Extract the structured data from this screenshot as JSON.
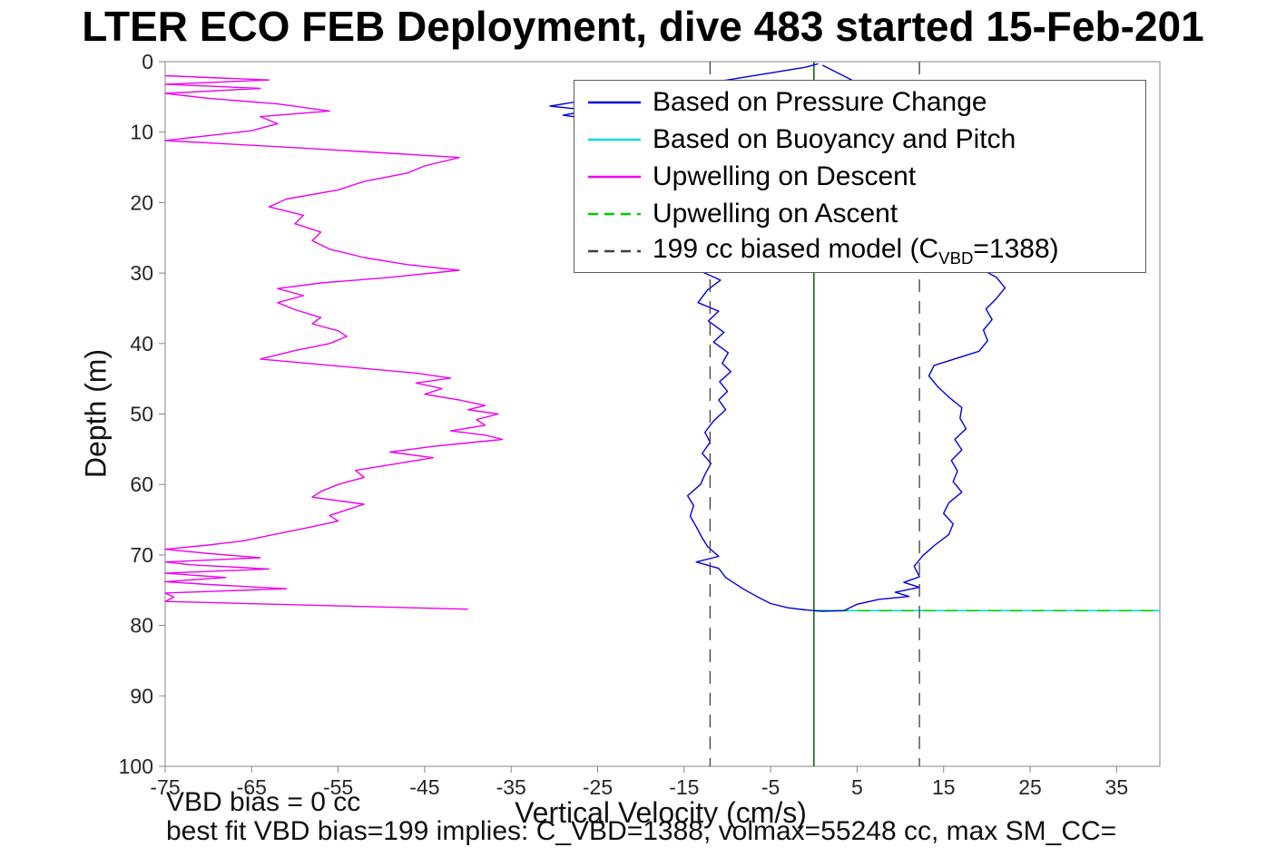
{
  "footer": {
    "vbd_bias": "VBD bias = 0 cc",
    "best_fit": "best fit VBD bias=199 implies: C_VBD=1388, volmax=55248 cc, max SM_CC="
  },
  "legend": {
    "position": "northeast",
    "items": [
      {
        "label": "Based on Pressure Change",
        "color": "#0000e0",
        "dash": "solid"
      },
      {
        "label": "Based on Buoyancy and Pitch",
        "color": "#00dcdc",
        "dash": "solid"
      },
      {
        "label": "Upwelling on Descent",
        "color": "#ee00ee",
        "dash": "solid"
      },
      {
        "label": "Upwelling on Ascent",
        "color": "#00cc00",
        "dash": "dashed"
      },
      {
        "label_pre": "199 cc biased model (C",
        "label_sub": "VBD",
        "label_post": "=1388)",
        "color": "#3f3f3f",
        "dash": "dashed"
      }
    ]
  },
  "chart_data": {
    "type": "line",
    "title": "LTER ECO FEB Deployment, dive 483 started 15-Feb-201",
    "xlabel": "Vertical Velocity (cm/s)",
    "ylabel": "Depth (m)",
    "xlim": [
      -75,
      40
    ],
    "ylim": [
      0,
      100
    ],
    "y_inverted": true,
    "grid": false,
    "axis_color": "#858585",
    "tick_label_color": "#262626",
    "xticks": [
      -75,
      -65,
      -55,
      -45,
      -35,
      -25,
      -15,
      -5,
      5,
      15,
      25,
      35
    ],
    "yticks": [
      0,
      10,
      20,
      30,
      40,
      50,
      60,
      70,
      80,
      90,
      100
    ],
    "series": [
      {
        "id": "upwelling-descent",
        "name": "Upwelling on Descent",
        "color": "#ee00ee",
        "width": 1.4,
        "dash": "solid",
        "points": [
          [
            -75,
            2.0
          ],
          [
            -63,
            2.6
          ],
          [
            -75,
            3.2
          ],
          [
            -64,
            3.8
          ],
          [
            -75,
            4.5
          ],
          [
            -70,
            5.2
          ],
          [
            -62,
            6.0
          ],
          [
            -56,
            7.0
          ],
          [
            -64,
            7.8
          ],
          [
            -62,
            8.8
          ],
          [
            -65,
            9.8
          ],
          [
            -70,
            10.5
          ],
          [
            -75,
            11.2
          ],
          [
            -60,
            12.2
          ],
          [
            -49,
            13.0
          ],
          [
            -41,
            13.6
          ],
          [
            -45,
            14.8
          ],
          [
            -47,
            15.8
          ],
          [
            -52,
            17.0
          ],
          [
            -55,
            18.2
          ],
          [
            -61,
            19.5
          ],
          [
            -63,
            20.6
          ],
          [
            -59,
            21.8
          ],
          [
            -60,
            23.0
          ],
          [
            -57,
            24.2
          ],
          [
            -58,
            25.4
          ],
          [
            -56,
            26.6
          ],
          [
            -52,
            27.8
          ],
          [
            -47,
            28.8
          ],
          [
            -41,
            29.6
          ],
          [
            -49,
            30.6
          ],
          [
            -57,
            31.4
          ],
          [
            -62,
            32.2
          ],
          [
            -59,
            33.2
          ],
          [
            -62,
            34.2
          ],
          [
            -60,
            35.2
          ],
          [
            -57,
            36.3
          ],
          [
            -58,
            37.2
          ],
          [
            -55,
            38.2
          ],
          [
            -54,
            39.0
          ],
          [
            -56,
            40.0
          ],
          [
            -60,
            41.0
          ],
          [
            -64,
            42.2
          ],
          [
            -55,
            43.2
          ],
          [
            -46,
            44.2
          ],
          [
            -42,
            44.9
          ],
          [
            -46,
            45.6
          ],
          [
            -43,
            46.4
          ],
          [
            -45,
            47.2
          ],
          [
            -41,
            48.0
          ],
          [
            -38,
            48.8
          ],
          [
            -40,
            49.4
          ],
          [
            -36.5,
            50.0
          ],
          [
            -39,
            50.8
          ],
          [
            -38,
            51.6
          ],
          [
            -42,
            52.4
          ],
          [
            -38,
            53.0
          ],
          [
            -36,
            53.6
          ],
          [
            -44,
            54.6
          ],
          [
            -49,
            55.4
          ],
          [
            -44,
            56.2
          ],
          [
            -48,
            57.0
          ],
          [
            -53,
            58.0
          ],
          [
            -52,
            59.0
          ],
          [
            -55,
            60.0
          ],
          [
            -57,
            61.0
          ],
          [
            -58,
            61.8
          ],
          [
            -52,
            62.8
          ],
          [
            -54,
            63.6
          ],
          [
            -56,
            64.4
          ],
          [
            -55,
            65.2
          ],
          [
            -58,
            66.0
          ],
          [
            -62,
            67.0
          ],
          [
            -66,
            68.0
          ],
          [
            -70,
            68.6
          ],
          [
            -75,
            69.2
          ],
          [
            -70,
            69.8
          ],
          [
            -64,
            70.4
          ],
          [
            -75,
            71.0
          ],
          [
            -72,
            71.4
          ],
          [
            -63,
            72.0
          ],
          [
            -75,
            72.6
          ],
          [
            -68,
            73.2
          ],
          [
            -75,
            73.8
          ],
          [
            -70,
            74.2
          ],
          [
            -61,
            74.8
          ],
          [
            -75,
            75.4
          ],
          [
            -74,
            76.0
          ],
          [
            -75,
            76.6
          ],
          [
            -40,
            77.7
          ]
        ]
      },
      {
        "id": "buoyancy-pitch",
        "name": "Based on Buoyancy and Pitch",
        "color": "#00dcdc",
        "width": 1.6,
        "dash": "solid",
        "points": [
          [
            0,
            77.9
          ],
          [
            40,
            77.9
          ]
        ]
      },
      {
        "id": "upwelling-ascent",
        "name": "Upwelling on Ascent",
        "color": "#00cc00",
        "width": 1.6,
        "dash": "dashed",
        "points": [
          [
            0,
            77.9
          ],
          [
            40,
            77.9
          ]
        ]
      },
      {
        "id": "zero-reference-line",
        "name": "zero reference",
        "color": "#006400",
        "width": 1.5,
        "dash": "solid",
        "points": [
          [
            0,
            0
          ],
          [
            0,
            100
          ]
        ]
      },
      {
        "id": "pressure-change",
        "name": "Based on Pressure Change",
        "color": "#0000e0",
        "width": 1.4,
        "dash": "solid",
        "points": [
          [
            0.5,
            0.3
          ],
          [
            -1,
            0.8
          ],
          [
            -10,
            2.6
          ],
          [
            -22,
            4.6
          ],
          [
            -30.5,
            6.3
          ],
          [
            -26,
            6.9
          ],
          [
            -29,
            7.6
          ],
          [
            -24,
            8.4
          ],
          [
            -18,
            9.6
          ],
          [
            -14,
            11.0
          ],
          [
            -12.5,
            13.0
          ],
          [
            -13.5,
            15.5
          ],
          [
            -11.5,
            18.0
          ],
          [
            -12.5,
            20.5
          ],
          [
            -11,
            23.0
          ],
          [
            -12,
            25.5
          ],
          [
            -10,
            27.3
          ],
          [
            -9,
            28.2
          ],
          [
            -13,
            29.8
          ],
          [
            -10.8,
            31.0
          ],
          [
            -12.3,
            32.4
          ],
          [
            -13.4,
            34.2
          ],
          [
            -11,
            35.4
          ],
          [
            -12.2,
            36.8
          ],
          [
            -10.4,
            38.4
          ],
          [
            -11.6,
            39.8
          ],
          [
            -9.9,
            41.3
          ],
          [
            -10.6,
            42.8
          ],
          [
            -9.6,
            44.0
          ],
          [
            -10.9,
            45.4
          ],
          [
            -10,
            46.8
          ],
          [
            -11,
            48.0
          ],
          [
            -10.2,
            49.4
          ],
          [
            -11.6,
            51.0
          ],
          [
            -12.6,
            52.6
          ],
          [
            -12,
            54.0
          ],
          [
            -12.9,
            55.6
          ],
          [
            -11.9,
            57.0
          ],
          [
            -12.6,
            58.6
          ],
          [
            -13.1,
            60.0
          ],
          [
            -14.6,
            61.6
          ],
          [
            -13.9,
            63.0
          ],
          [
            -14.3,
            64.5
          ],
          [
            -13.6,
            66.0
          ],
          [
            -13,
            67.4
          ],
          [
            -12.3,
            68.8
          ],
          [
            -11,
            70.2
          ],
          [
            -13.6,
            71.0
          ],
          [
            -11,
            71.9
          ],
          [
            -10.2,
            73.2
          ],
          [
            -8.2,
            74.8
          ],
          [
            -6.6,
            75.9
          ],
          [
            -5,
            76.9
          ],
          [
            -3,
            77.5
          ],
          [
            -1,
            77.8
          ],
          [
            1,
            78.0
          ],
          [
            3.5,
            77.9
          ],
          [
            5,
            77.0
          ],
          [
            7.5,
            76.3
          ],
          [
            11,
            75.9
          ],
          [
            9.4,
            75.3
          ],
          [
            12.2,
            74.6
          ],
          [
            10.4,
            73.9
          ],
          [
            12.2,
            73.1
          ],
          [
            11.6,
            71.6
          ],
          [
            12.6,
            70.1
          ],
          [
            14,
            68.6
          ],
          [
            15.6,
            67.1
          ],
          [
            16.1,
            65.6
          ],
          [
            15,
            64.1
          ],
          [
            15.6,
            62.6
          ],
          [
            17.1,
            61.1
          ],
          [
            16.1,
            59.6
          ],
          [
            16.6,
            58.1
          ],
          [
            15.9,
            56.6
          ],
          [
            17.1,
            55.1
          ],
          [
            16.3,
            53.6
          ],
          [
            17.6,
            52.1
          ],
          [
            16.9,
            50.6
          ],
          [
            17.1,
            49.1
          ],
          [
            15.6,
            47.6
          ],
          [
            14.3,
            46.1
          ],
          [
            13.3,
            44.6
          ],
          [
            13.9,
            43.1
          ],
          [
            19.1,
            41.1
          ],
          [
            20.1,
            39.6
          ],
          [
            19.6,
            38.1
          ],
          [
            20.6,
            36.6
          ],
          [
            19.9,
            35.1
          ],
          [
            21.1,
            33.6
          ],
          [
            22.1,
            32.1
          ],
          [
            21.1,
            30.6
          ],
          [
            19.6,
            29.6
          ],
          [
            21.6,
            28.4
          ],
          [
            20,
            25.0
          ],
          [
            21,
            22.0
          ],
          [
            19,
            18.0
          ],
          [
            16,
            13.0
          ],
          [
            11,
            8.0
          ],
          [
            5,
            3.0
          ],
          [
            1,
            0.5
          ]
        ]
      },
      {
        "id": "biased-model",
        "name": "199 cc biased model (C_VBD=1388)",
        "color": "#3f3f3f",
        "width": 1.3,
        "dash": "dashed",
        "segments": [
          [
            [
              -12,
              0
            ],
            [
              -12,
              100
            ]
          ],
          [
            [
              12.2,
              0
            ],
            [
              12.2,
              100
            ]
          ]
        ]
      }
    ]
  }
}
